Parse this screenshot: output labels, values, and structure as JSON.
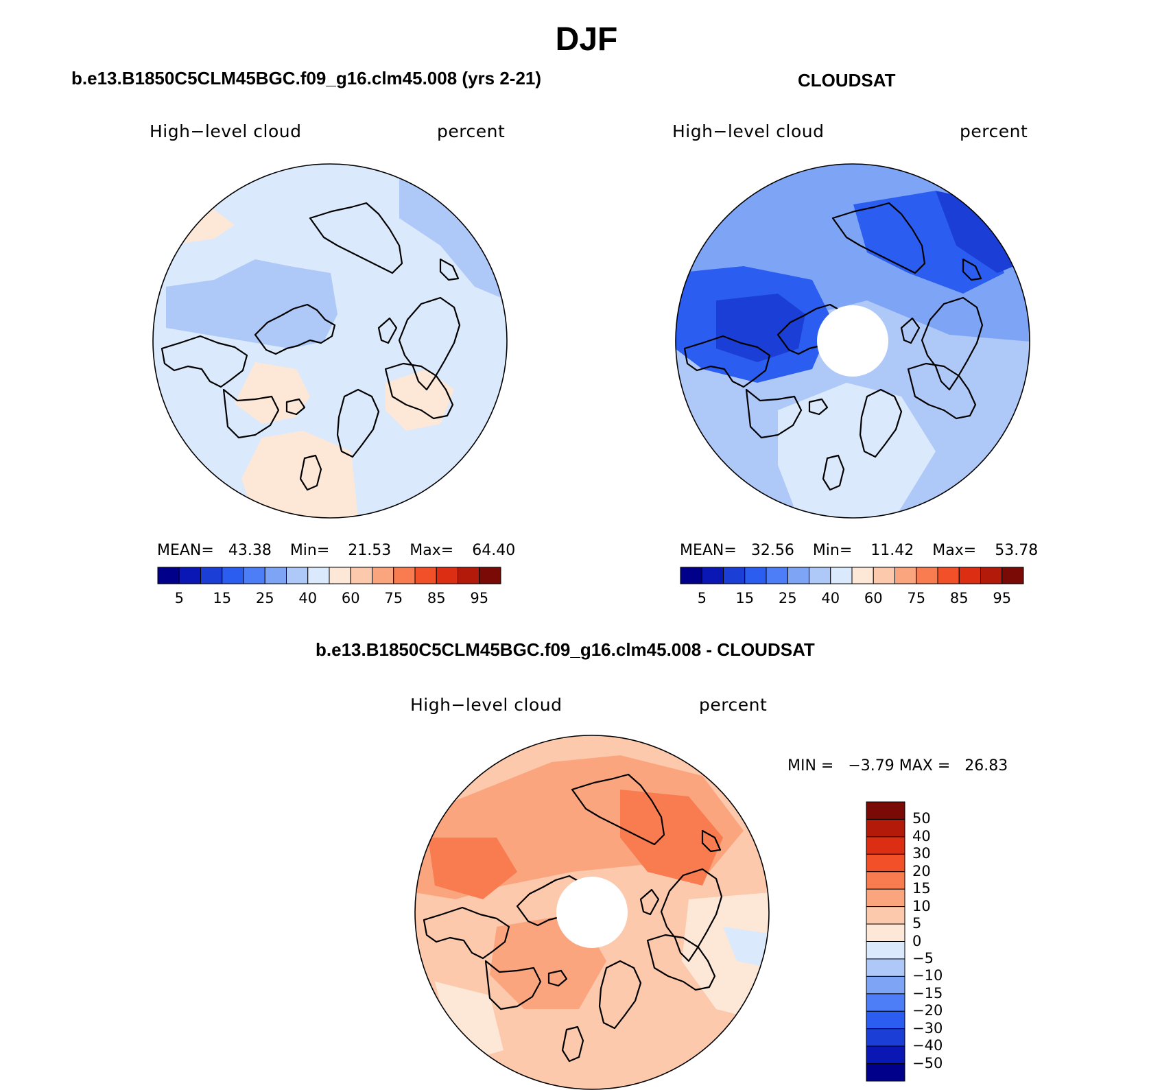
{
  "title": "DJF",
  "panels": [
    {
      "id": "model",
      "heading": "b.e13.B1850C5CLM45BGC.f09_g16.clm45.008 (yrs 2-21)",
      "left_label": "High−level cloud",
      "right_label": "percent",
      "stats": {
        "mean_label": "MEAN=",
        "mean": "43.38",
        "min_label": "Min=",
        "min": "21.53",
        "max_label": "Max=",
        "max": "64.40"
      }
    },
    {
      "id": "obs",
      "heading": "CLOUDSAT",
      "left_label": "High−level cloud",
      "right_label": "percent",
      "stats": {
        "mean_label": "MEAN=",
        "mean": "32.56",
        "min_label": "Min=",
        "min": "11.42",
        "max_label": "Max=",
        "max": "53.78"
      }
    },
    {
      "id": "diff",
      "heading": "b.e13.B1850C5CLM45BGC.f09_g16.clm45.008 - CLOUDSAT",
      "left_label": "High−level cloud",
      "right_label": "percent",
      "minmax": "MIN =   −3.79 MAX =   26.83"
    }
  ],
  "colorbar_horizontal": {
    "colors": [
      "#00008b",
      "#0b17b5",
      "#1a3ed6",
      "#2b5ef0",
      "#4e7ef7",
      "#7ea4f5",
      "#aec8f8",
      "#dbe9fc",
      "#fde8d8",
      "#fcc9ad",
      "#fba57f",
      "#f97b50",
      "#f25028",
      "#dc2e12",
      "#b31a0a",
      "#7a0a05"
    ],
    "ticks": [
      "5",
      "15",
      "25",
      "40",
      "60",
      "75",
      "85",
      "95"
    ]
  },
  "colorbar_vertical": {
    "colors": [
      "#7a0a05",
      "#b31a0a",
      "#dc2e12",
      "#f25028",
      "#f97b50",
      "#fba57f",
      "#fcc9ad",
      "#fde8d8",
      "#dbe9fc",
      "#aec8f8",
      "#7ea4f5",
      "#4e7ef7",
      "#2b5ef0",
      "#1a3ed6",
      "#0b17b5",
      "#00008b"
    ],
    "ticks": [
      "50",
      "40",
      "30",
      "20",
      "15",
      "10",
      "5",
      "0",
      "−5",
      "−10",
      "−15",
      "−20",
      "−30",
      "−40",
      "−50"
    ]
  },
  "map_fills": {
    "model": {
      "base": "#dbe9fc",
      "mid": "#aec8f8",
      "warm": "#fde8d8",
      "edge": "#7ea4f5"
    },
    "obs": {
      "base": "#aec8f8",
      "mid": "#7ea4f5",
      "deep": "#2b5ef0",
      "dark": "#1a3ed6",
      "light": "#dbe9fc"
    },
    "diff": {
      "base": "#fcc9ad",
      "mid": "#fba57f",
      "deep": "#f97b50",
      "light": "#fde8d8",
      "cool": "#dbe9fc"
    }
  }
}
